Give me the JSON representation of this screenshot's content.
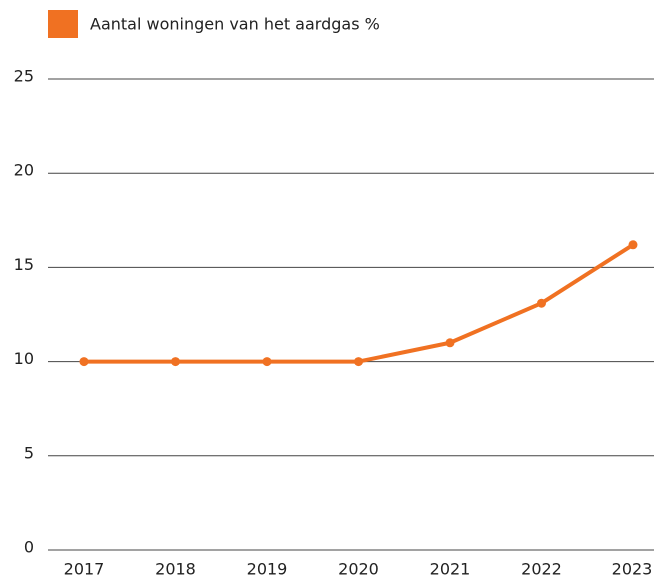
{
  "chart_data": {
    "type": "line",
    "categories": [
      "2017",
      "2018",
      "2019",
      "2020",
      "2021",
      "2022",
      "2023"
    ],
    "series": [
      {
        "name": "Aantal woningen van het aardgas %",
        "color": "#f07122",
        "values": [
          10,
          10,
          10,
          10,
          11,
          13.1,
          16.2
        ]
      }
    ],
    "ylim": [
      0,
      25
    ],
    "yticks": [
      0,
      5,
      10,
      15,
      20,
      25
    ],
    "grid": true,
    "legend": "top-left"
  }
}
